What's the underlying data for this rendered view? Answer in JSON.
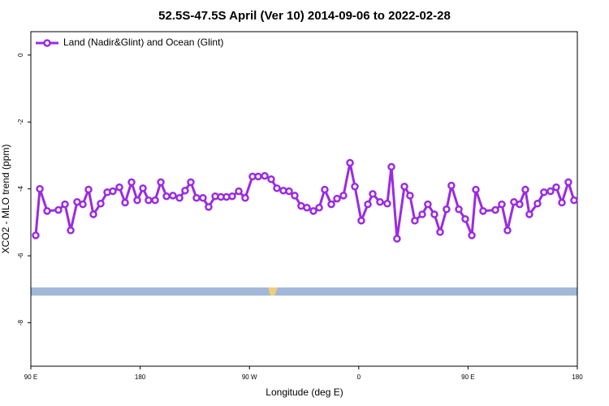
{
  "chart_data": {
    "type": "line",
    "title": "52.5S-47.5S April (Ver 10)   2014-09-06 to 2022-02-28",
    "x_label": "Longitude (deg E)",
    "y_label": "XCO2 - MLO trend (ppm)",
    "legend": "top-left",
    "xlim": [
      90,
      540
    ],
    "xticks": [
      {
        "value": 90,
        "label": "90 E"
      },
      180,
      {
        "value": 270,
        "label": "90 W"
      },
      {
        "value": 360,
        "label": "0"
      },
      {
        "value": 450,
        "label": "90 E"
      },
      {
        "value": 540,
        "label": "180"
      }
    ],
    "ylim": [
      -9.3,
      0.7
    ],
    "yticks": [
      0,
      -2,
      -4,
      -6,
      -8
    ],
    "x": [
      94.0,
      97.4,
      103.4,
      112.7,
      118.1,
      122.8,
      128.1,
      132.8,
      137.5,
      141.5,
      147.5,
      152.9,
      157.5,
      162.9,
      167.6,
      172.9,
      177.6,
      182.3,
      186.9,
      192.3,
      197.0,
      201.7,
      207.0,
      212.4,
      217.0,
      221.7,
      226.4,
      231.7,
      236.4,
      241.8,
      246.5,
      251.1,
      255.8,
      261.2,
      266.5,
      272.5,
      277.2,
      282.6,
      287.9,
      292.6,
      297.9,
      302.6,
      307.3,
      312.6,
      317.3,
      322.7,
      327.4,
      332.0,
      337.4,
      342.1,
      347.4,
      352.8,
      356.8,
      362.1,
      367.5,
      371.5,
      377.5,
      383.5,
      386.9,
      391.5,
      397.6,
      402.2,
      406.2,
      412.3,
      416.9,
      422.3,
      427.0,
      432.3,
      436.3,
      442.4,
      447.7,
      453.1,
      456.4,
      462.4,
      472.5,
      477.8,
      482.5,
      487.8,
      492.5,
      497.2,
      500.5,
      507.2,
      512.5,
      517.9,
      522.6,
      527.3,
      532.6,
      537.3
    ],
    "series": [
      {
        "name": "Land (Nadir&Glint) and Ocean (Glint)",
        "color": "#9a2be2",
        "values": [
          -5.39,
          -4.0,
          -4.66,
          -4.63,
          -4.46,
          -5.24,
          -4.39,
          -4.46,
          -4.02,
          -4.76,
          -4.44,
          -4.1,
          -4.07,
          -3.95,
          -4.41,
          -3.8,
          -4.34,
          -3.98,
          -4.34,
          -4.34,
          -3.8,
          -4.22,
          -4.2,
          -4.27,
          -4.05,
          -3.8,
          -4.27,
          -4.27,
          -4.54,
          -4.22,
          -4.24,
          -4.24,
          -4.22,
          -4.07,
          -4.27,
          -3.63,
          -3.63,
          -3.61,
          -3.71,
          -3.98,
          -4.05,
          -4.07,
          -4.2,
          -4.51,
          -4.56,
          -4.66,
          -4.56,
          -4.02,
          -4.46,
          -4.29,
          -4.2,
          -3.22,
          -3.93,
          -4.95,
          -4.46,
          -4.15,
          -4.39,
          -4.44,
          -3.34,
          -5.49,
          -3.93,
          -4.2,
          -4.95,
          -4.76,
          -4.46,
          -4.76,
          -5.29,
          -4.61,
          -3.9,
          -4.61,
          -4.9,
          -5.39,
          -4.02,
          -4.66,
          -4.63,
          -4.46,
          -5.24,
          -4.39,
          -4.46,
          -4.02,
          -4.76,
          -4.44,
          -4.1,
          -4.07,
          -3.95,
          -4.41,
          -3.8,
          -4.34
        ]
      }
    ]
  }
}
